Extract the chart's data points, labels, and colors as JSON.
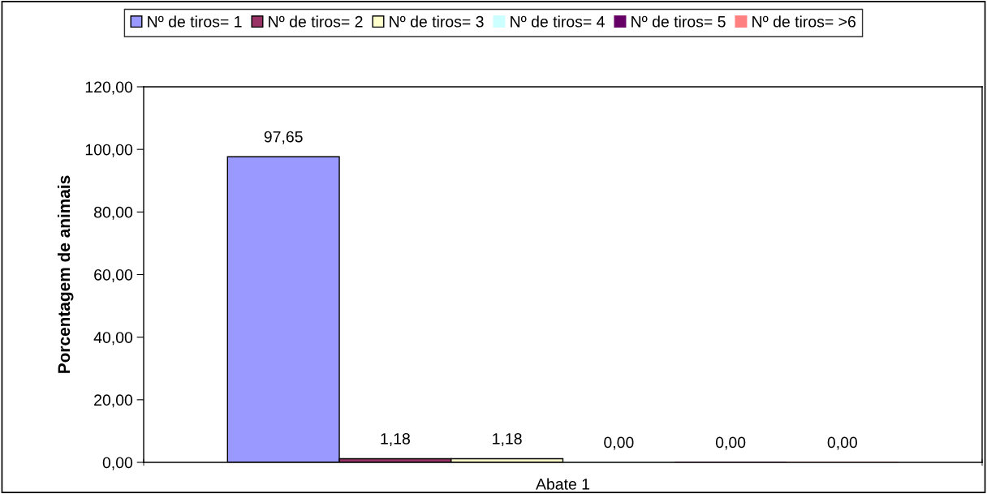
{
  "chart_data": {
    "type": "bar",
    "ylabel": "Porcentagem de animais",
    "categories": [
      "Abate 1"
    ],
    "series": [
      {
        "name": "Nº de tiros= 1",
        "color": "#9999ff",
        "values": [
          97.65
        ],
        "value_labels": [
          "97,65"
        ]
      },
      {
        "name": "Nº de tiros= 2",
        "color": "#993366",
        "values": [
          1.18
        ],
        "value_labels": [
          "1,18"
        ]
      },
      {
        "name": "Nº de tiros= 3",
        "color": "#ffffcc",
        "values": [
          1.18
        ],
        "value_labels": [
          "1,18"
        ]
      },
      {
        "name": "Nº de tiros= 4",
        "color": "#ccffff",
        "values": [
          0
        ],
        "value_labels": [
          "0,00"
        ]
      },
      {
        "name": "Nº de tiros= 5",
        "color": "#660066",
        "values": [
          0
        ],
        "value_labels": [
          "0,00"
        ]
      },
      {
        "name": "Nº de tiros= >6",
        "color": "#ff8080",
        "values": [
          0
        ],
        "value_labels": [
          "0,00"
        ]
      }
    ],
    "ylim": [
      0,
      120
    ],
    "yticks": [
      {
        "value": 0,
        "label": "0,00"
      },
      {
        "value": 20,
        "label": "20,00"
      },
      {
        "value": 40,
        "label": "40,00"
      },
      {
        "value": 60,
        "label": "60,00"
      },
      {
        "value": 80,
        "label": "80,00"
      },
      {
        "value": 100,
        "label": "100,00"
      },
      {
        "value": 120,
        "label": "120,00"
      }
    ],
    "grid": false,
    "legend": "top"
  }
}
